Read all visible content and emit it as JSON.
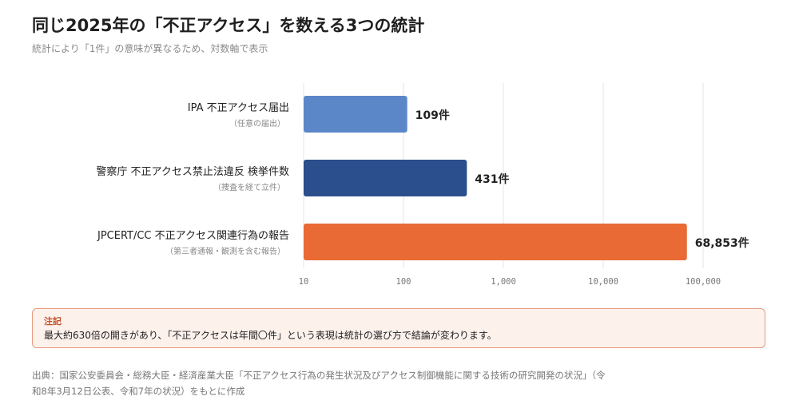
{
  "header": {
    "title": "同じ2025年の「不正アクセス」を数える3つの統計",
    "subtitle": "統計により「1件」の意味が異なるため、対数軸で表示"
  },
  "chart_data": {
    "type": "bar",
    "orientation": "horizontal",
    "x_scale": "log",
    "xlim": [
      10,
      100000
    ],
    "grid": true,
    "ticks": [
      "10",
      "100",
      "1,000",
      "10,000",
      "100,000"
    ],
    "tick_values": [
      10,
      100,
      1000,
      10000,
      100000
    ],
    "categories": [
      {
        "label": "IPA 不正アクセス届出",
        "sublabel": "（任意の届出）",
        "value": 109,
        "value_label": "109件",
        "color": "#5b87c9"
      },
      {
        "label": "警察庁 不正アクセス禁止法違反 検挙件数",
        "sublabel": "（捜査を経て立件）",
        "value": 431,
        "value_label": "431件",
        "color": "#2b4e8c"
      },
      {
        "label": "JPCERT/CC 不正アクセス関連行為の報告",
        "sublabel": "（第三者通報・観測を含む報告）",
        "value": 68853,
        "value_label": "68,853件",
        "color": "#e96a35"
      }
    ]
  },
  "note": {
    "title": "注記",
    "text": "最大約630倍の開きがあり、「不正アクセスは年間〇件」という表現は統計の選び方で結論が変わります。"
  },
  "source": {
    "text": "出典：国家公安委員会・総務大臣・経済産業大臣「不正アクセス行為の発生状況及びアクセス制御機能に関する技術の研究開発の状況」（令和8年3月12日公表、令和7年の状況）をもとに作成"
  }
}
